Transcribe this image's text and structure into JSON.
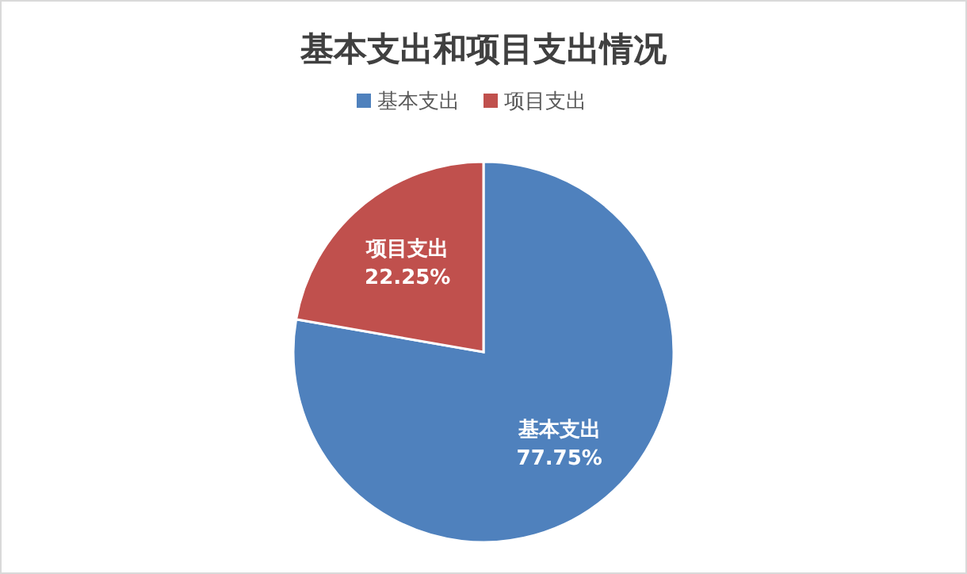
{
  "chart_data": {
    "type": "pie",
    "title": "基本支出和项目支出情况",
    "categories": [
      "基本支出",
      "项目支出"
    ],
    "values": [
      77.75,
      22.25
    ],
    "colors": [
      "#4f81bd",
      "#c0504d"
    ],
    "value_labels": [
      "77.75%",
      "22.25%"
    ],
    "legend": "top"
  }
}
